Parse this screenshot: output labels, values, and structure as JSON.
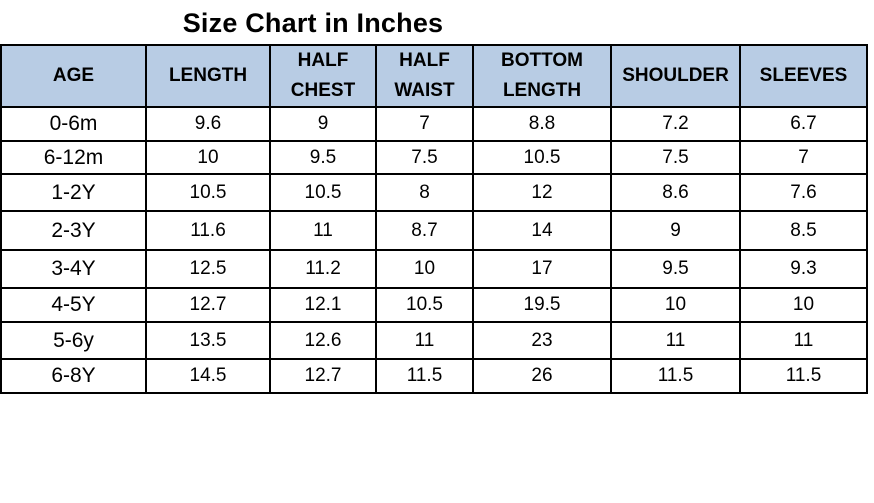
{
  "title": "Size Chart in Inches",
  "header_color": "#b8cce4",
  "columns": [
    {
      "line1": "AGE",
      "line2": ""
    },
    {
      "line1": "LENGTH",
      "line2": ""
    },
    {
      "line1": "HALF",
      "line2": "CHEST"
    },
    {
      "line1": "HALF",
      "line2": "WAIST"
    },
    {
      "line1": "BOTTOM",
      "line2": "LENGTH"
    },
    {
      "line1": "SHOULDER",
      "line2": ""
    },
    {
      "line1": "SLEEVES",
      "line2": ""
    }
  ],
  "rows": [
    {
      "age": "0-6m",
      "length": "9.6",
      "half_chest": "9",
      "half_waist": "7",
      "bottom_length": "8.8",
      "shoulder": "7.2",
      "sleeves": "6.7"
    },
    {
      "age": "6-12m",
      "length": "10",
      "half_chest": "9.5",
      "half_waist": "7.5",
      "bottom_length": "10.5",
      "shoulder": "7.5",
      "sleeves": "7"
    },
    {
      "age": "1-2Y",
      "length": "10.5",
      "half_chest": "10.5",
      "half_waist": "8",
      "bottom_length": "12",
      "shoulder": "8.6",
      "sleeves": "7.6"
    },
    {
      "age": "2-3Y",
      "length": "11.6",
      "half_chest": "11",
      "half_waist": "8.7",
      "bottom_length": "14",
      "shoulder": "9",
      "sleeves": "8.5"
    },
    {
      "age": "3-4Y",
      "length": "12.5",
      "half_chest": "11.2",
      "half_waist": "10",
      "bottom_length": "17",
      "shoulder": "9.5",
      "sleeves": "9.3"
    },
    {
      "age": "4-5Y",
      "length": "12.7",
      "half_chest": "12.1",
      "half_waist": "10.5",
      "bottom_length": "19.5",
      "shoulder": "10",
      "sleeves": "10"
    },
    {
      "age": "5-6y",
      "length": "13.5",
      "half_chest": "12.6",
      "half_waist": "11",
      "bottom_length": "23",
      "shoulder": "11",
      "sleeves": "11"
    },
    {
      "age": "6-8Y",
      "length": "14.5",
      "half_chest": "12.7",
      "half_waist": "11.5",
      "bottom_length": "26",
      "shoulder": "11.5",
      "sleeves": "11.5"
    }
  ]
}
